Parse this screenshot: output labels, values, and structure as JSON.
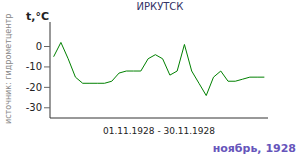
{
  "chart_data": {
    "type": "line",
    "title": "ИРКУТСК",
    "ylabel": "t,°C",
    "xlabel": "01.11.1928 - 30.11.1928",
    "annotations": [
      "источник: гидрометцентр",
      "ноябрь, 1928"
    ],
    "x": [
      1,
      2,
      3,
      4,
      5,
      6,
      7,
      8,
      9,
      10,
      11,
      12,
      13,
      14,
      15,
      16,
      17,
      18,
      19,
      20,
      21,
      22,
      23,
      24,
      25,
      26,
      27,
      28,
      29,
      30
    ],
    "values": [
      -5,
      2,
      -6,
      -15,
      -18,
      -18,
      -18,
      -18,
      -17,
      -13,
      -12,
      -12,
      -12,
      -6,
      -4,
      -6,
      -14,
      -12,
      1,
      -12,
      -18,
      -24,
      -15,
      -12,
      -17,
      -17,
      -16,
      -15,
      -15,
      -15
    ],
    "color": "#008000",
    "xlim": [
      0.5,
      30.5
    ],
    "ylim": [
      -35,
      12
    ],
    "yticks": [
      0,
      -10,
      -20,
      -30
    ],
    "grid": false,
    "tick_labels": "y"
  }
}
